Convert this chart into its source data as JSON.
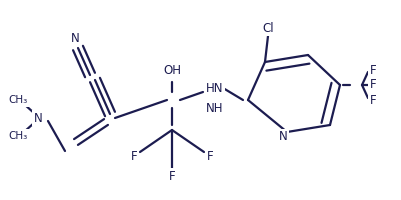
{
  "bg": "#ffffff",
  "bc": "#1c1c50",
  "lw": 1.6,
  "fs": 8.5,
  "dbo": 3.5,
  "figw": 4.01,
  "figh": 2.0,
  "dpi": 100,
  "xlim": [
    0,
    401
  ],
  "ylim": [
    0,
    200
  ]
}
